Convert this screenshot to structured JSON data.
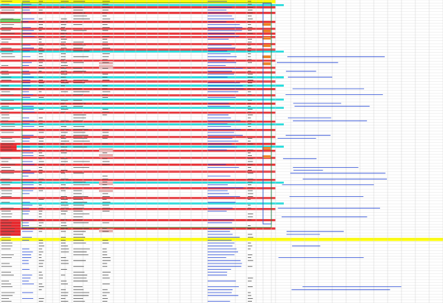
{
  "spreadsheet": {
    "colors": {
      "grid_line": "#d0d0d0",
      "header_fill": "#ffff00",
      "band_red": "#e8262b",
      "band_cyan": "#28dede",
      "band_yellow": "#ffff00",
      "band_green": "#62c85a",
      "band_orange": "#f08020",
      "band_pink": "#e8b0b0",
      "border_blue": "#3a5fd0",
      "border_green": "#2a8a2a",
      "link_blue": "#1a3fd0"
    },
    "visible_text": []
  }
}
